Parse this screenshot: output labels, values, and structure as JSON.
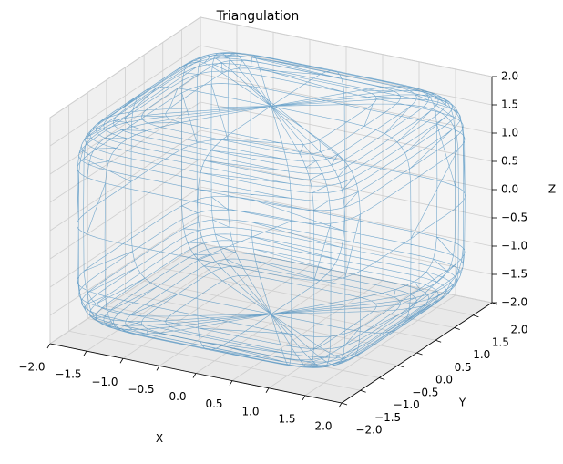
{
  "chart_data": {
    "type": "trisurf",
    "title": "Triangulation",
    "xlabel": "X",
    "ylabel": "Y",
    "zlabel": "Z",
    "color": "#1f77b4",
    "grid": true,
    "xlim": [
      -2,
      2
    ],
    "ylim": [
      -2,
      2
    ],
    "zlim": [
      -2,
      2
    ],
    "xticks": [
      {
        "value": -2,
        "label": "−2.0"
      },
      {
        "value": -1.5,
        "label": "−1.5"
      },
      {
        "value": -1,
        "label": "−1.0"
      },
      {
        "value": -0.5,
        "label": "−0.5"
      },
      {
        "value": 0,
        "label": "0.0"
      },
      {
        "value": 0.5,
        "label": "0.5"
      },
      {
        "value": 1,
        "label": "1.0"
      },
      {
        "value": 1.5,
        "label": "1.5"
      },
      {
        "value": 2,
        "label": "2.0"
      }
    ],
    "yticks": [
      {
        "value": -2,
        "label": "−2.0"
      },
      {
        "value": -1.5,
        "label": "−1.5"
      },
      {
        "value": -1,
        "label": "−1.0"
      },
      {
        "value": -0.5,
        "label": "−0.5"
      },
      {
        "value": 0,
        "label": "0.0"
      },
      {
        "value": 0.5,
        "label": "0.5"
      },
      {
        "value": 1,
        "label": "1.0"
      },
      {
        "value": 1.5,
        "label": "1.5"
      },
      {
        "value": 2,
        "label": "2.0"
      }
    ],
    "zticks": [
      {
        "value": -2,
        "label": "−2.0"
      },
      {
        "value": -1.5,
        "label": "−1.5"
      },
      {
        "value": -1,
        "label": "−1.0"
      },
      {
        "value": -0.5,
        "label": "−0.5"
      },
      {
        "value": 0,
        "label": "0.0"
      },
      {
        "value": 0.5,
        "label": "0.5"
      },
      {
        "value": 1,
        "label": "1.0"
      },
      {
        "value": 1.5,
        "label": "1.5"
      },
      {
        "value": 2,
        "label": "2.0"
      }
    ]
  }
}
